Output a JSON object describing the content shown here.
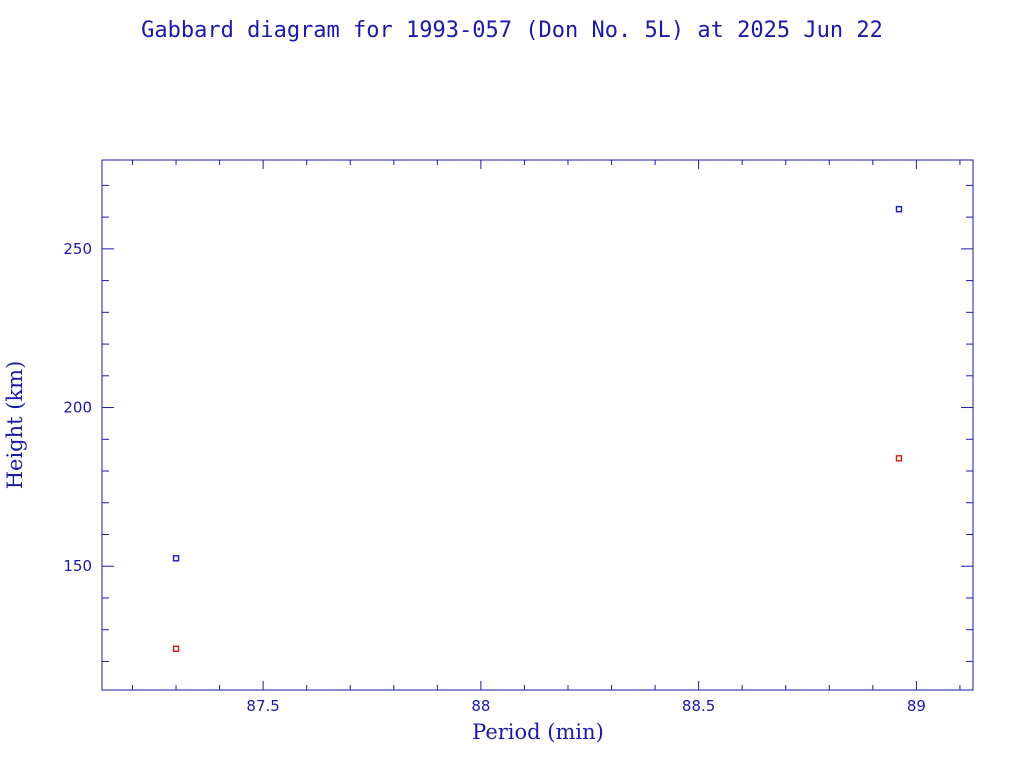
{
  "colors": {
    "axis": "#1a1aa6",
    "apogee": "#1a1ad0",
    "perigee": "#d01a1a"
  },
  "chart_data": {
    "type": "scatter",
    "title": "Gabbard diagram for 1993-057 (Don No. 5L) at 2025 Jun 22",
    "xlabel": "Period (min)",
    "ylabel": "Height (km)",
    "xlim": [
      87.13,
      89.13
    ],
    "ylim": [
      111,
      278
    ],
    "xticks": [
      87.5,
      88,
      88.5,
      89
    ],
    "xtick_labels": [
      "87.5",
      "88",
      "88.5",
      "89"
    ],
    "yticks": [
      150,
      200,
      250
    ],
    "ytick_labels": [
      "150",
      "200",
      "250"
    ],
    "x_minor_step": 0.1,
    "y_minor_step": 10,
    "grid": false,
    "series": [
      {
        "color": "#1a1ad0",
        "points": [
          {
            "x": 87.3,
            "y": 152.5
          },
          {
            "x": 88.96,
            "y": 262.5
          }
        ]
      },
      {
        "color": "#d01a1a",
        "points": [
          {
            "x": 87.3,
            "y": 124
          },
          {
            "x": 88.96,
            "y": 184
          }
        ]
      }
    ]
  }
}
